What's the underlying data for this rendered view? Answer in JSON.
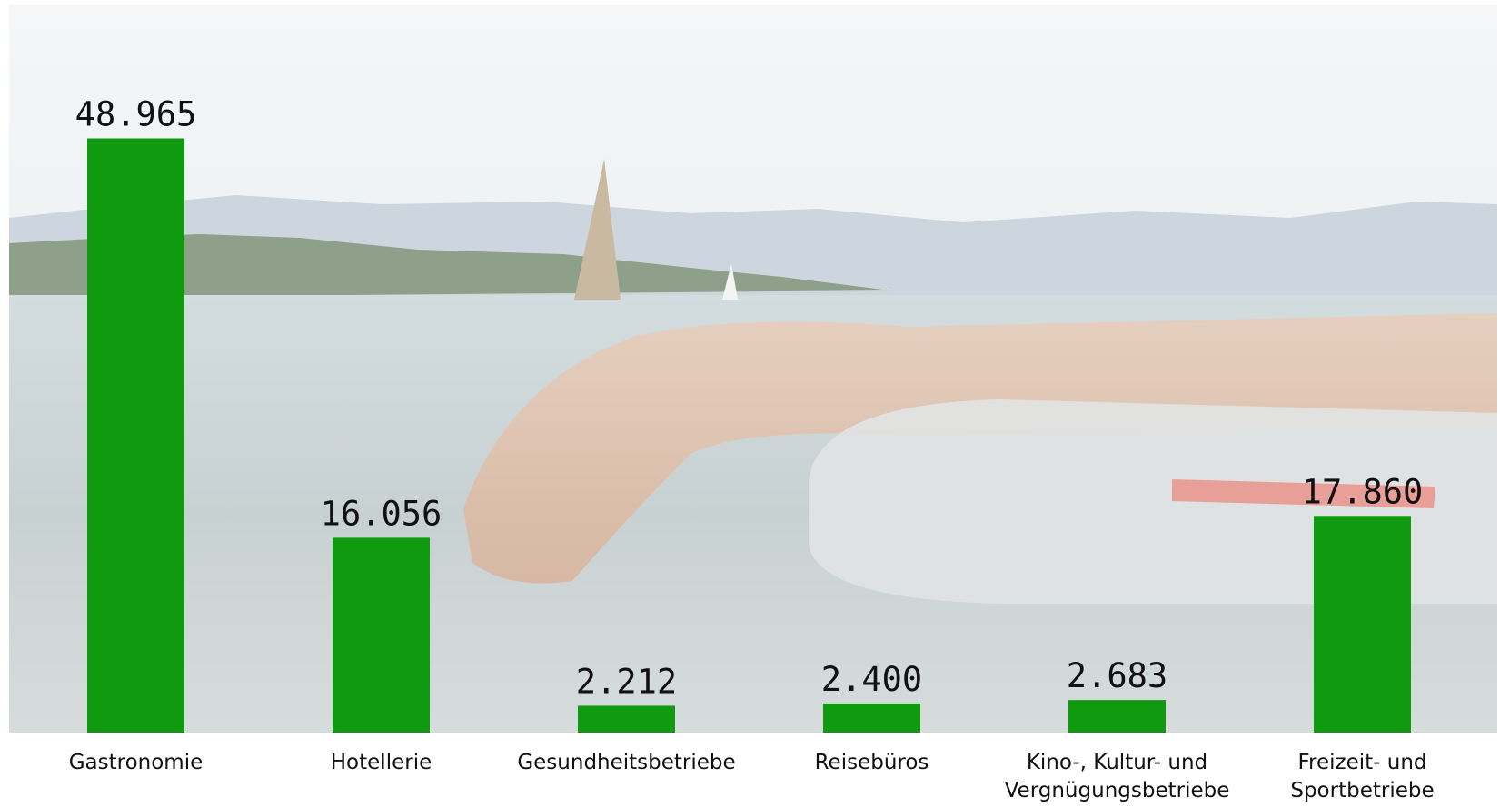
{
  "chart_data": {
    "type": "bar",
    "categories": [
      "Gastronomie",
      "Hotellerie",
      "Gesundheitsbetriebe",
      "Reisebüros",
      "Kino-, Kultur- und Vergnügungsbetriebe",
      "Freizeit- und Sportbetriebe"
    ],
    "values": [
      48965,
      16056,
      2212,
      2400,
      2683,
      17860
    ],
    "value_labels": [
      "48.965",
      "16.056",
      "2.212",
      "2.400",
      "2.683",
      "17.860"
    ],
    "color": "#0f9a10",
    "ylim": [
      0,
      60000
    ]
  }
}
